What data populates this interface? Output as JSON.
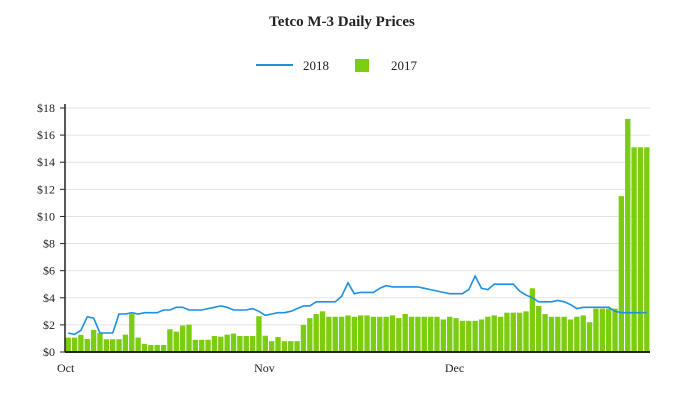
{
  "chart_data": {
    "type": "bar+line",
    "title": "Tetco M-3 Daily Prices",
    "xlabel": "",
    "ylabel": "",
    "ylim": [
      0,
      18
    ],
    "yticks": [
      "$0",
      "$2",
      "$4",
      "$6",
      "$8",
      "$10",
      "$12",
      "$14",
      "$16",
      "$18"
    ],
    "ytick_values": [
      0,
      2,
      4,
      6,
      8,
      10,
      12,
      14,
      16,
      18
    ],
    "xticks": [
      {
        "label": "Oct",
        "day_index": 0
      },
      {
        "label": "Nov",
        "day_index": 31
      },
      {
        "label": "Dec",
        "day_index": 61
      }
    ],
    "grid": true,
    "legend_position": "top-center",
    "series": [
      {
        "name": "2018",
        "kind": "line",
        "color": "#1e90e0",
        "values": [
          1.4,
          1.3,
          1.6,
          2.6,
          2.5,
          1.4,
          1.4,
          1.4,
          2.8,
          2.8,
          2.9,
          2.8,
          2.9,
          2.9,
          2.9,
          3.1,
          3.1,
          3.3,
          3.3,
          3.1,
          3.1,
          3.1,
          3.2,
          3.3,
          3.4,
          3.3,
          3.1,
          3.1,
          3.1,
          3.2,
          3.0,
          2.7,
          2.8,
          2.9,
          2.9,
          3.0,
          3.2,
          3.4,
          3.4,
          3.7,
          3.7,
          3.7,
          3.7,
          4.1,
          5.1,
          4.3,
          4.4,
          4.4,
          4.4,
          4.7,
          4.9,
          4.8,
          4.8,
          4.8,
          4.8,
          4.8,
          4.7,
          4.6,
          4.5,
          4.4,
          4.3,
          4.3,
          4.3,
          4.6,
          5.6,
          4.7,
          4.6,
          5.0,
          5.0,
          5.0,
          5.0,
          4.5,
          4.2,
          4.0,
          3.7,
          3.7,
          3.7,
          3.8,
          3.7,
          3.5,
          3.2,
          3.3,
          3.3,
          3.3,
          3.3,
          3.3,
          3.0,
          2.9,
          2.9,
          2.9,
          2.9,
          2.9
        ]
      },
      {
        "name": "2017",
        "kind": "bar",
        "color": "#7ccc10",
        "values": [
          1.06,
          1.06,
          1.26,
          0.96,
          1.63,
          1.4,
          0.94,
          0.94,
          0.94,
          1.28,
          2.8,
          1.06,
          0.6,
          0.52,
          0.52,
          0.52,
          1.68,
          1.5,
          1.95,
          2.02,
          0.9,
          0.9,
          0.9,
          1.18,
          1.13,
          1.28,
          1.36,
          1.18,
          1.18,
          1.18,
          2.64,
          1.2,
          0.8,
          1.1,
          0.8,
          0.8,
          0.8,
          2.0,
          2.5,
          2.8,
          3.0,
          2.6,
          2.6,
          2.6,
          2.7,
          2.6,
          2.7,
          2.7,
          2.6,
          2.6,
          2.6,
          2.7,
          2.5,
          2.8,
          2.6,
          2.6,
          2.6,
          2.6,
          2.6,
          2.4,
          2.6,
          2.5,
          2.3,
          2.3,
          2.3,
          2.4,
          2.6,
          2.7,
          2.6,
          2.9,
          2.9,
          2.9,
          3.0,
          4.7,
          3.4,
          2.8,
          2.6,
          2.6,
          2.6,
          2.4,
          2.6,
          2.7,
          2.2,
          3.2,
          3.2,
          3.2,
          3.2,
          11.5,
          17.2,
          15.1,
          15.1,
          15.1
        ]
      }
    ]
  }
}
